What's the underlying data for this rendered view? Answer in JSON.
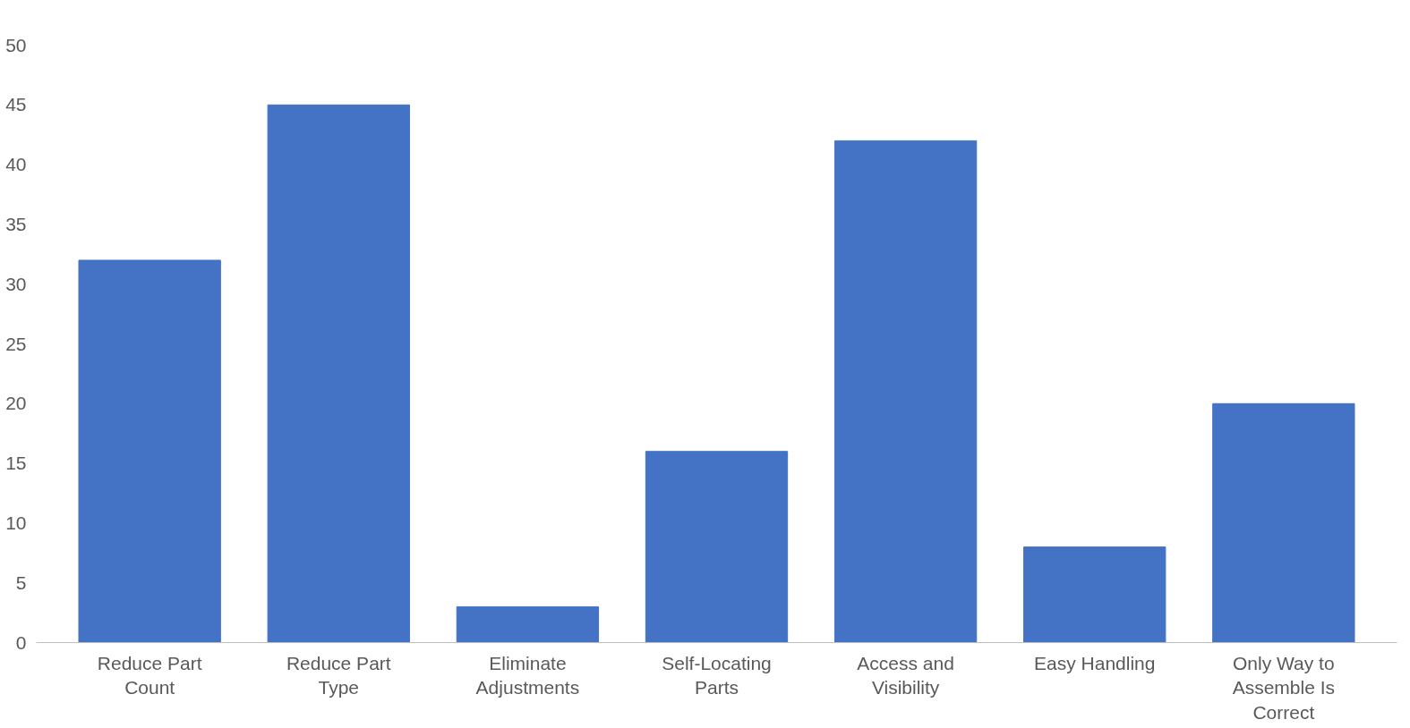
{
  "chart_data": {
    "type": "bar",
    "categories": [
      "Reduce Part Count",
      "Reduce Part Type",
      "Eliminate Adjustments",
      "Self-Locating Parts",
      "Access and Visibility",
      "Easy Handling",
      "Only Way to Assemble Is Correct"
    ],
    "values": [
      32,
      45,
      3,
      16,
      42,
      8,
      20
    ],
    "color": "#4472c4",
    "ylim": [
      0,
      50
    ],
    "yticks": [
      0,
      5,
      10,
      15,
      20,
      25,
      30,
      35,
      40,
      45,
      50
    ],
    "grid": false
  }
}
